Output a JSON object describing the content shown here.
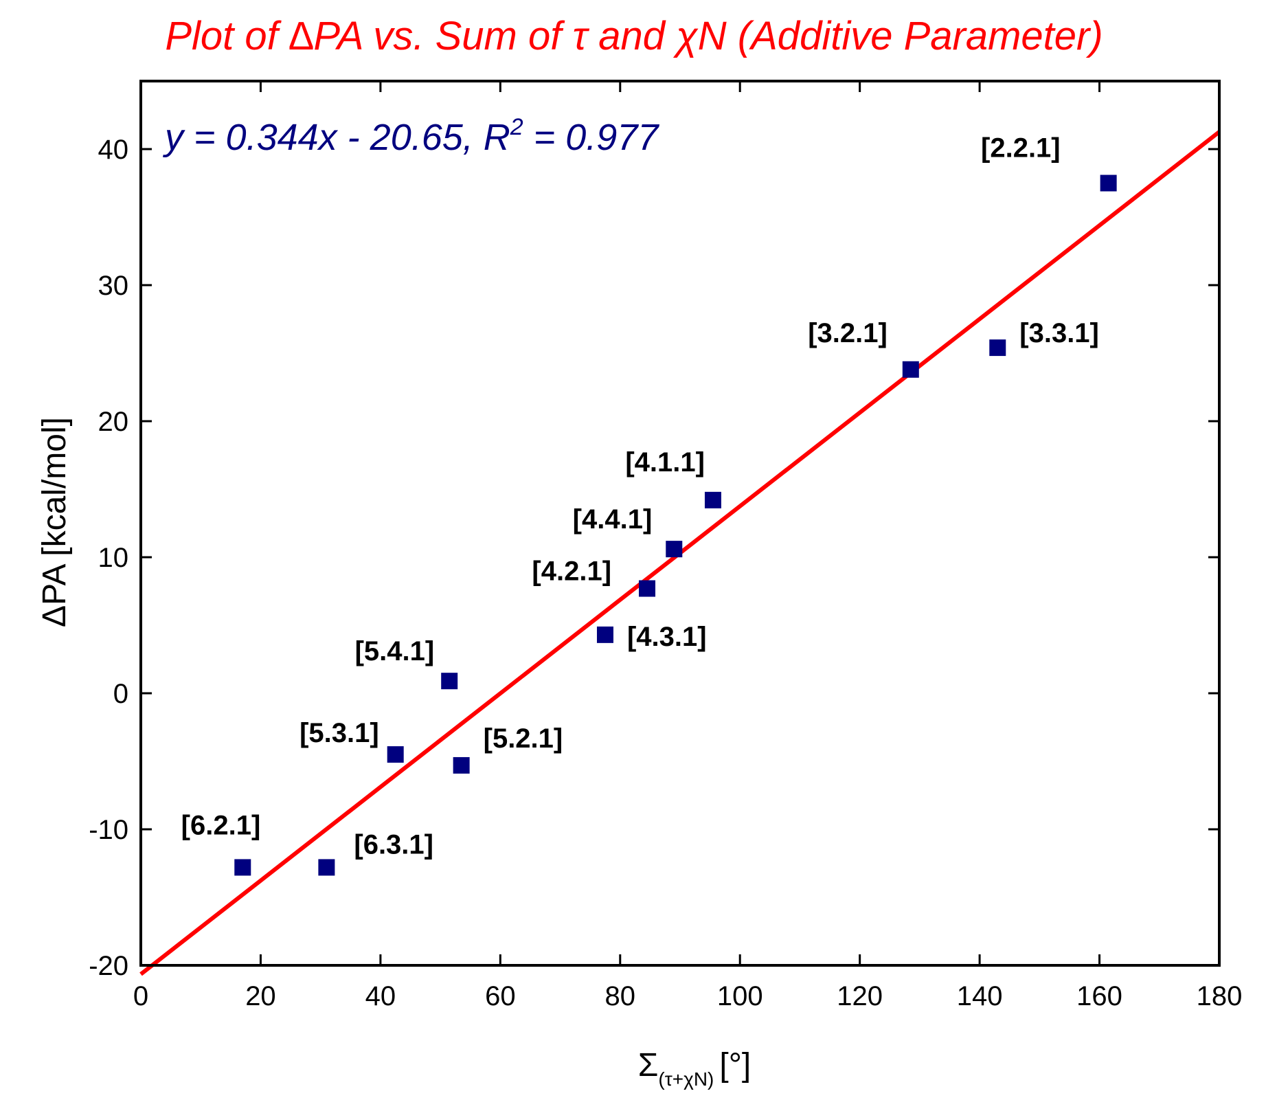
{
  "chart_data": {
    "type": "scatter",
    "title": "Plot of ∆PA vs. Sum of τ and χN (Additive Parameter)",
    "xlabel": "Σ",
    "xlabel_subscript": "(τ+χN)",
    "xlabel_unit": "[°]",
    "ylabel": "ΔPA [kcal/mol]",
    "xlim": [
      0,
      180
    ],
    "ylim": [
      -20,
      45
    ],
    "x_ticks": [
      0,
      20,
      40,
      60,
      80,
      100,
      120,
      140,
      160,
      180
    ],
    "y_ticks": [
      -20,
      -10,
      0,
      10,
      20,
      30,
      40
    ],
    "grid": false,
    "series": [
      {
        "name": "data",
        "marker": "square",
        "points": [
          {
            "label": "[2.2.1]",
            "x": 161.5,
            "y": 37.5
          },
          {
            "label": "[3.3.1]",
            "x": 143.0,
            "y": 25.4
          },
          {
            "label": "[3.2.1]",
            "x": 128.5,
            "y": 23.8
          },
          {
            "label": "[4.1.1]",
            "x": 95.5,
            "y": 14.2
          },
          {
            "label": "[4.4.1]",
            "x": 89.0,
            "y": 10.6
          },
          {
            "label": "[4.2.1]",
            "x": 84.5,
            "y": 7.7
          },
          {
            "label": "[4.3.1]",
            "x": 77.5,
            "y": 4.3
          },
          {
            "label": "[5.4.1]",
            "x": 51.5,
            "y": 0.9
          },
          {
            "label": "[5.2.1]",
            "x": 53.5,
            "y": -5.3
          },
          {
            "label": "[5.3.1]",
            "x": 42.5,
            "y": -4.5
          },
          {
            "label": "[6.2.1]",
            "x": 17.0,
            "y": -12.8
          },
          {
            "label": "[6.3.1]",
            "x": 31.0,
            "y": -12.8
          }
        ]
      }
    ],
    "fit_line": {
      "slope": 0.344,
      "intercept": -20.65,
      "x_range": [
        0,
        180
      ]
    },
    "annotation": {
      "prefix": "y = 0.344x - 20.65, R",
      "superscript": "2",
      "suffix": " = 0.977"
    }
  },
  "colors": {
    "title": "#ff0000",
    "fit_line": "#ff0000",
    "marker": "#00007f",
    "equation": "#00007f",
    "axis": "#000000"
  }
}
